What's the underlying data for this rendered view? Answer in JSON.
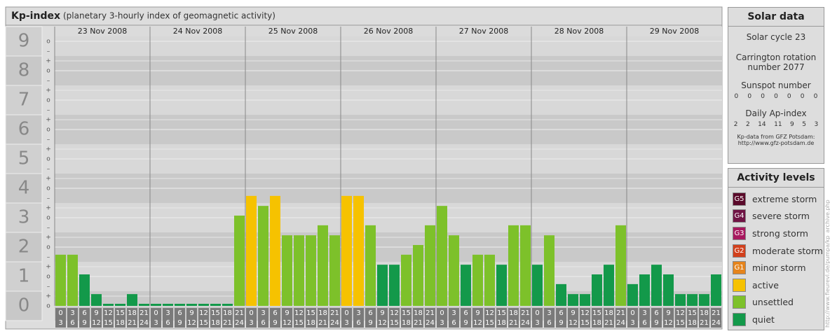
{
  "chart_data": {
    "type": "bar",
    "title": "Kp-index",
    "subtitle": "(planetary 3-hourly index of geomagnetic activity)",
    "ylim": [
      -0.5,
      9.5
    ],
    "yticks": [
      0,
      1,
      2,
      3,
      4,
      5,
      6,
      7,
      8,
      9
    ],
    "minor_labels": {
      "zero": "o",
      "plus": "+",
      "minus": "–"
    },
    "hour_ranges": [
      [
        0,
        3
      ],
      [
        3,
        6
      ],
      [
        6,
        9
      ],
      [
        9,
        12
      ],
      [
        12,
        15
      ],
      [
        15,
        18
      ],
      [
        18,
        21
      ],
      [
        21,
        24
      ]
    ],
    "days": [
      {
        "date": "23 Nov 2008",
        "values": [
          1.67,
          1.67,
          1,
          0.33,
          0,
          0,
          0.33,
          0
        ],
        "colors": [
          "#7dc12a",
          "#7dc12a",
          "#13994a",
          "#13994a",
          "#13994a",
          "#13994a",
          "#13994a",
          "#13994a"
        ]
      },
      {
        "date": "24 Nov 2008",
        "values": [
          0,
          0,
          0,
          0,
          0,
          0,
          0,
          3
        ],
        "colors": [
          "#13994a",
          "#13994a",
          "#13994a",
          "#13994a",
          "#13994a",
          "#13994a",
          "#13994a",
          "#7dc12a"
        ]
      },
      {
        "date": "25 Nov 2008",
        "values": [
          3.67,
          3.33,
          3.67,
          2.33,
          2.33,
          2.33,
          2.67,
          2.33
        ],
        "colors": [
          "#f6c200",
          "#7dc12a",
          "#f6c200",
          "#7dc12a",
          "#7dc12a",
          "#7dc12a",
          "#7dc12a",
          "#7dc12a"
        ]
      },
      {
        "date": "26 Nov 2008",
        "values": [
          3.67,
          3.67,
          2.67,
          1.33,
          1.33,
          1.67,
          2,
          2.67
        ],
        "colors": [
          "#f6c200",
          "#f6c200",
          "#7dc12a",
          "#13994a",
          "#13994a",
          "#7dc12a",
          "#7dc12a",
          "#7dc12a"
        ]
      },
      {
        "date": "27 Nov 2008",
        "values": [
          3.33,
          2.33,
          1.33,
          1.67,
          1.67,
          1.33,
          2.67,
          2.67
        ],
        "colors": [
          "#7dc12a",
          "#7dc12a",
          "#13994a",
          "#7dc12a",
          "#7dc12a",
          "#13994a",
          "#7dc12a",
          "#7dc12a"
        ]
      },
      {
        "date": "28 Nov 2008",
        "values": [
          1.33,
          2.33,
          0.67,
          0.33,
          0.33,
          1,
          1.33,
          2.67
        ],
        "colors": [
          "#13994a",
          "#7dc12a",
          "#13994a",
          "#13994a",
          "#13994a",
          "#13994a",
          "#13994a",
          "#7dc12a"
        ]
      },
      {
        "date": "29 Nov 2008",
        "values": [
          0.67,
          1,
          1.33,
          1,
          0.33,
          0.33,
          0.33,
          1
        ],
        "colors": [
          "#13994a",
          "#13994a",
          "#13994a",
          "#13994a",
          "#13994a",
          "#13994a",
          "#13994a",
          "#13994a"
        ]
      }
    ]
  },
  "solar_data": {
    "title": "Solar data",
    "cycle": "Solar cycle 23",
    "carrington_1": "Carrington rotation",
    "carrington_2": "number 2077",
    "sunspot_title": "Sunspot number",
    "sunspot": [
      0,
      0,
      0,
      0,
      0,
      0,
      0
    ],
    "ap_title": "Daily Ap-index",
    "ap": [
      2,
      2,
      14,
      11,
      9,
      5,
      3
    ],
    "source_1": "Kp-data from GFZ Potsdam:",
    "source_2": "http://www.gfz-potsdam.de"
  },
  "activity_levels": {
    "title": "Activity levels",
    "items": [
      {
        "code": "G5",
        "label": "extreme storm",
        "color": "#5a0a2a"
      },
      {
        "code": "G4",
        "label": "severe storm",
        "color": "#701445"
      },
      {
        "code": "G3",
        "label": "strong storm",
        "color": "#a8185e"
      },
      {
        "code": "G2",
        "label": "moderate storm",
        "color": "#d2401c"
      },
      {
        "code": "G1",
        "label": "minor storm",
        "color": "#e5841c"
      },
      {
        "code": null,
        "label": "active",
        "color": "#f6c200"
      },
      {
        "code": null,
        "label": "unsettled",
        "color": "#7dc12a"
      },
      {
        "code": null,
        "label": "quiet",
        "color": "#13994a"
      }
    ]
  },
  "side_url": "http://www.fieurevl.de/pumpa/kp_archive.php"
}
